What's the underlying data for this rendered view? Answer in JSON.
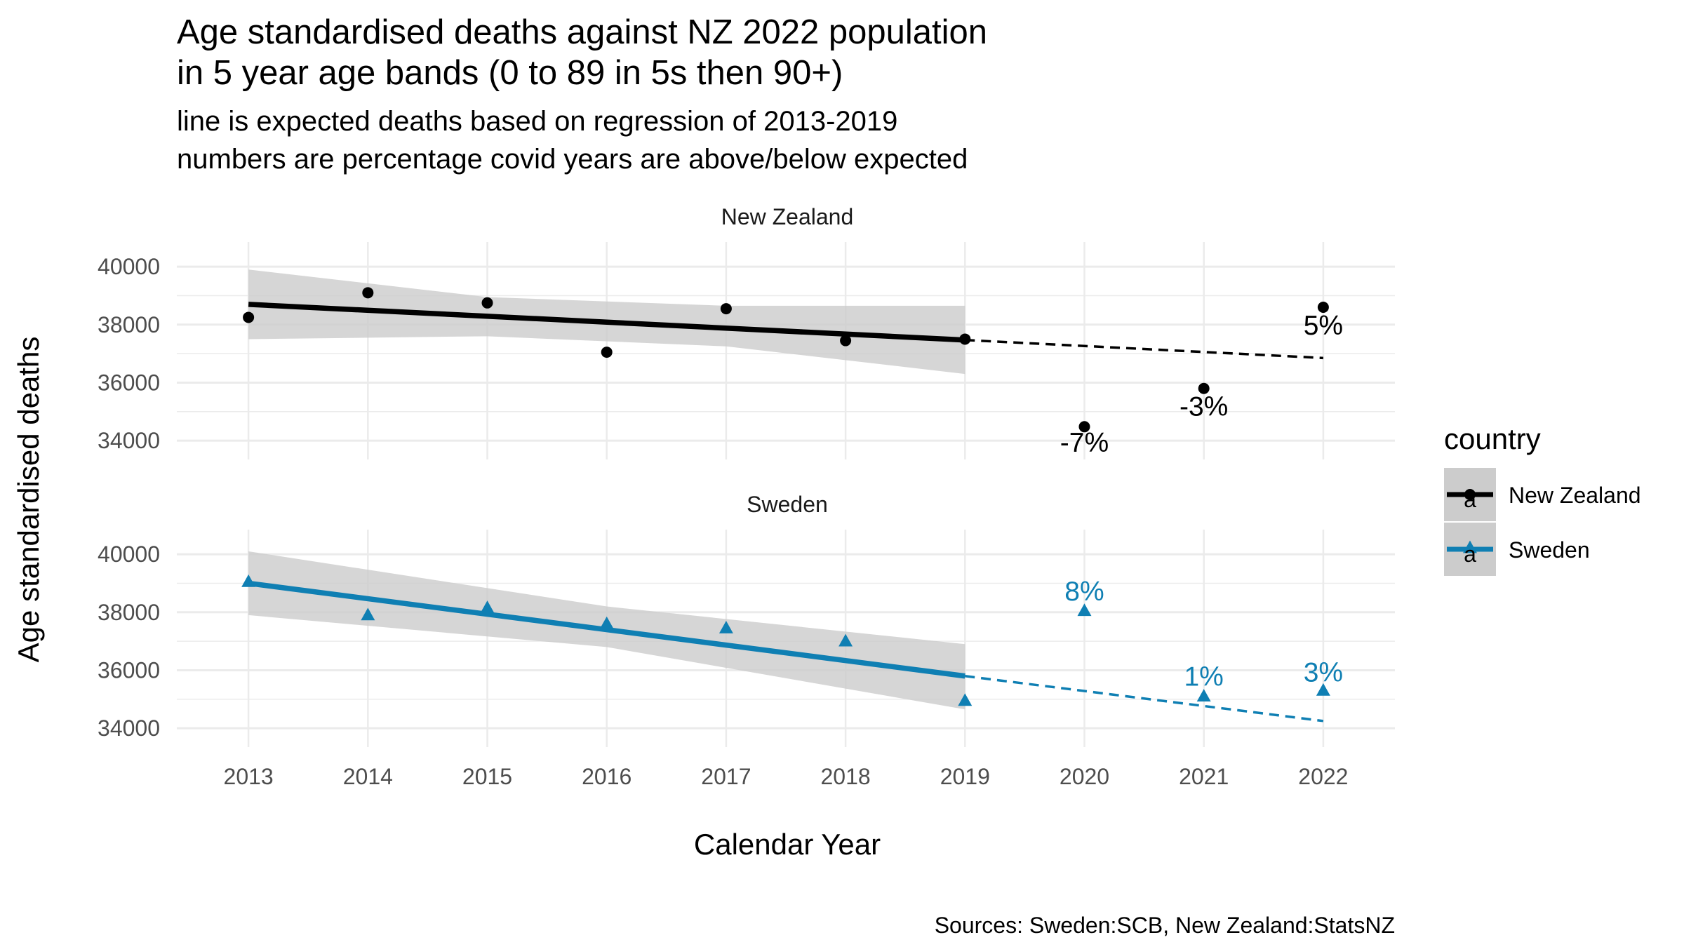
{
  "title_line1": "Age standardised deaths against NZ 2022 population",
  "title_line2": "in 5 year age bands (0 to 89 in 5s then 90+)",
  "subtitle_line1": "line is expected deaths based on regression of 2013-2019",
  "subtitle_line2": "numbers are percentage covid years are above/below expected",
  "caption": "Sources: Sweden:SCB, New Zealand:StatsNZ",
  "colors": {
    "New Zealand": "#000000",
    "Sweden": "#0f7fb3",
    "band": "#cccccc",
    "grid": "#ebebeb"
  },
  "chart_data": {
    "type": "scatter",
    "xlabel": "Calendar Year",
    "ylabel": "Age standardised deaths",
    "x_ticks": [
      "2013",
      "2014",
      "2015",
      "2016",
      "2017",
      "2018",
      "2019",
      "2020",
      "2021",
      "2022"
    ],
    "y_ticks": [
      "34000",
      "36000",
      "38000",
      "40000"
    ],
    "ylim": [
      33350,
      40850
    ],
    "grid": true,
    "legend": {
      "title": "country",
      "position": "right",
      "key_glyph": "a",
      "entries": [
        "New Zealand",
        "Sweden"
      ]
    },
    "panels": [
      {
        "name": "New Zealand",
        "points": [
          {
            "x": 2013,
            "y": 38250
          },
          {
            "x": 2014,
            "y": 39100
          },
          {
            "x": 2015,
            "y": 38750
          },
          {
            "x": 2016,
            "y": 37050
          },
          {
            "x": 2017,
            "y": 38550
          },
          {
            "x": 2018,
            "y": 37450
          },
          {
            "x": 2019,
            "y": 37500
          },
          {
            "x": 2020,
            "y": 34480
          },
          {
            "x": 2021,
            "y": 35800
          },
          {
            "x": 2022,
            "y": 38600
          }
        ],
        "fit": [
          {
            "x": 2013,
            "y": 38700
          },
          {
            "x": 2019,
            "y": 37470
          }
        ],
        "band": {
          "x": [
            2013,
            2015,
            2017,
            2019
          ],
          "upper": [
            39900,
            38950,
            38650,
            38650
          ],
          "lower": [
            37500,
            37600,
            37250,
            36300
          ]
        },
        "projection": [
          {
            "x": 2019,
            "y": 37470
          },
          {
            "x": 2022,
            "y": 36850
          }
        ],
        "labels": [
          {
            "x": 2020,
            "y": 33950,
            "text": "-7%"
          },
          {
            "x": 2021,
            "y": 35200,
            "text": "-3%"
          },
          {
            "x": 2022,
            "y": 38000,
            "text": "5%"
          }
        ]
      },
      {
        "name": "Sweden",
        "points": [
          {
            "x": 2013,
            "y": 39050
          },
          {
            "x": 2014,
            "y": 37900
          },
          {
            "x": 2015,
            "y": 38150
          },
          {
            "x": 2016,
            "y": 37600
          },
          {
            "x": 2017,
            "y": 37450
          },
          {
            "x": 2018,
            "y": 37000
          },
          {
            "x": 2019,
            "y": 34950
          },
          {
            "x": 2020,
            "y": 38050
          },
          {
            "x": 2021,
            "y": 35100
          },
          {
            "x": 2022,
            "y": 35300
          }
        ],
        "fit": [
          {
            "x": 2013,
            "y": 39000
          },
          {
            "x": 2019,
            "y": 35800
          }
        ],
        "band": {
          "x": [
            2013,
            2016,
            2019
          ],
          "upper": [
            40100,
            38200,
            36900
          ],
          "lower": [
            37900,
            36800,
            34650
          ]
        },
        "projection": [
          {
            "x": 2019,
            "y": 35800
          },
          {
            "x": 2022,
            "y": 34250
          }
        ],
        "labels": [
          {
            "x": 2020,
            "y": 38750,
            "text": "8%"
          },
          {
            "x": 2021,
            "y": 35800,
            "text": "1%"
          },
          {
            "x": 2022,
            "y": 35950,
            "text": "3%"
          }
        ]
      }
    ]
  }
}
